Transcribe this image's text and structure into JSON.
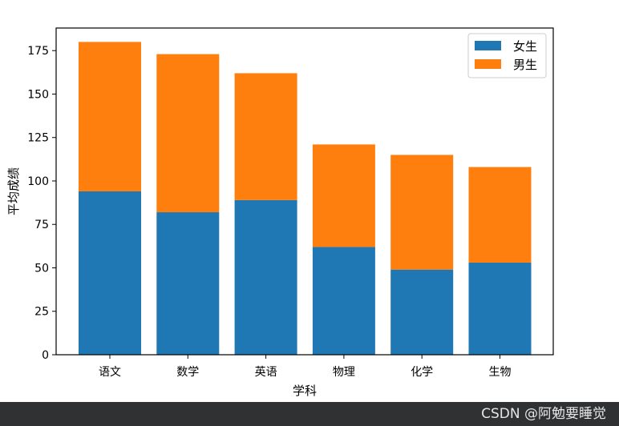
{
  "chart_data": {
    "type": "bar",
    "stacked": true,
    "categories": [
      "语文",
      "数学",
      "英语",
      "物理",
      "化学",
      "生物"
    ],
    "series": [
      {
        "name": "女生",
        "color": "#1f77b4",
        "values": [
          94,
          82,
          89,
          62,
          49,
          53
        ]
      },
      {
        "name": "男生",
        "color": "#ff7f0e",
        "values": [
          86,
          91,
          73,
          59,
          66,
          55
        ]
      }
    ],
    "xlabel": "学科",
    "ylabel": "平均成绩",
    "ylim": [
      0,
      188
    ],
    "yticks": [
      0,
      25,
      50,
      75,
      100,
      125,
      150,
      175
    ],
    "grid": false,
    "legend_position": "top-right"
  },
  "footer": {
    "watermark": "CSDN @阿勉要睡觉"
  }
}
